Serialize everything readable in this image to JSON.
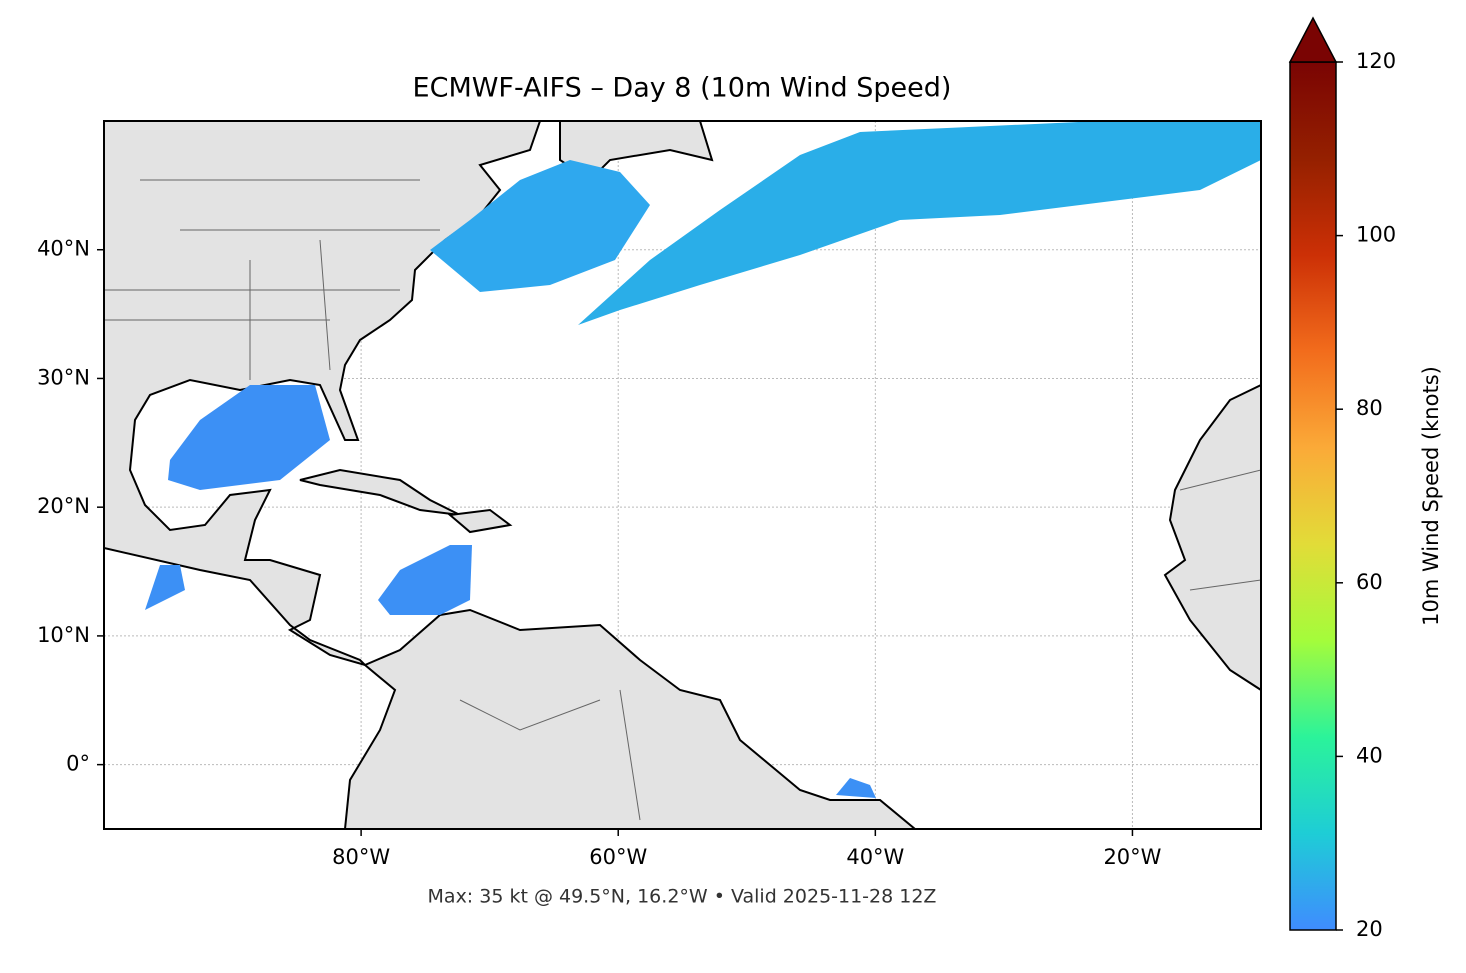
{
  "chart_data": {
    "type": "map",
    "title": "ECMWF-AIFS – Day 8 (10m Wind Speed)",
    "subtitle": "Max: 35 kt @ 49.5°N, 16.2°W • Valid 2025-11-28 12Z",
    "xlim": [
      -100,
      -10
    ],
    "ylim": [
      -5,
      50
    ],
    "xticks": [
      {
        "value": -80,
        "label": "80°W"
      },
      {
        "value": -60,
        "label": "60°W"
      },
      {
        "value": -40,
        "label": "40°W"
      },
      {
        "value": -20,
        "label": "20°W"
      }
    ],
    "yticks": [
      {
        "value": 0,
        "label": "0°"
      },
      {
        "value": 10,
        "label": "10°N"
      },
      {
        "value": 20,
        "label": "20°N"
      },
      {
        "value": 30,
        "label": "30°N"
      },
      {
        "value": 40,
        "label": "40°N"
      }
    ],
    "grid": true,
    "colorbar": {
      "label": "10m Wind Speed (knots)",
      "lim": [
        20,
        120
      ],
      "ticks": [
        20,
        40,
        60,
        80,
        100,
        120
      ],
      "colors": [
        "#3f8cff",
        "#1ecdd6",
        "#2bf39a",
        "#a4fc3b",
        "#e2dc38",
        "#fbaa38",
        "#f26c1c",
        "#cc3006",
        "#952000",
        "#7a0403"
      ]
    }
  }
}
